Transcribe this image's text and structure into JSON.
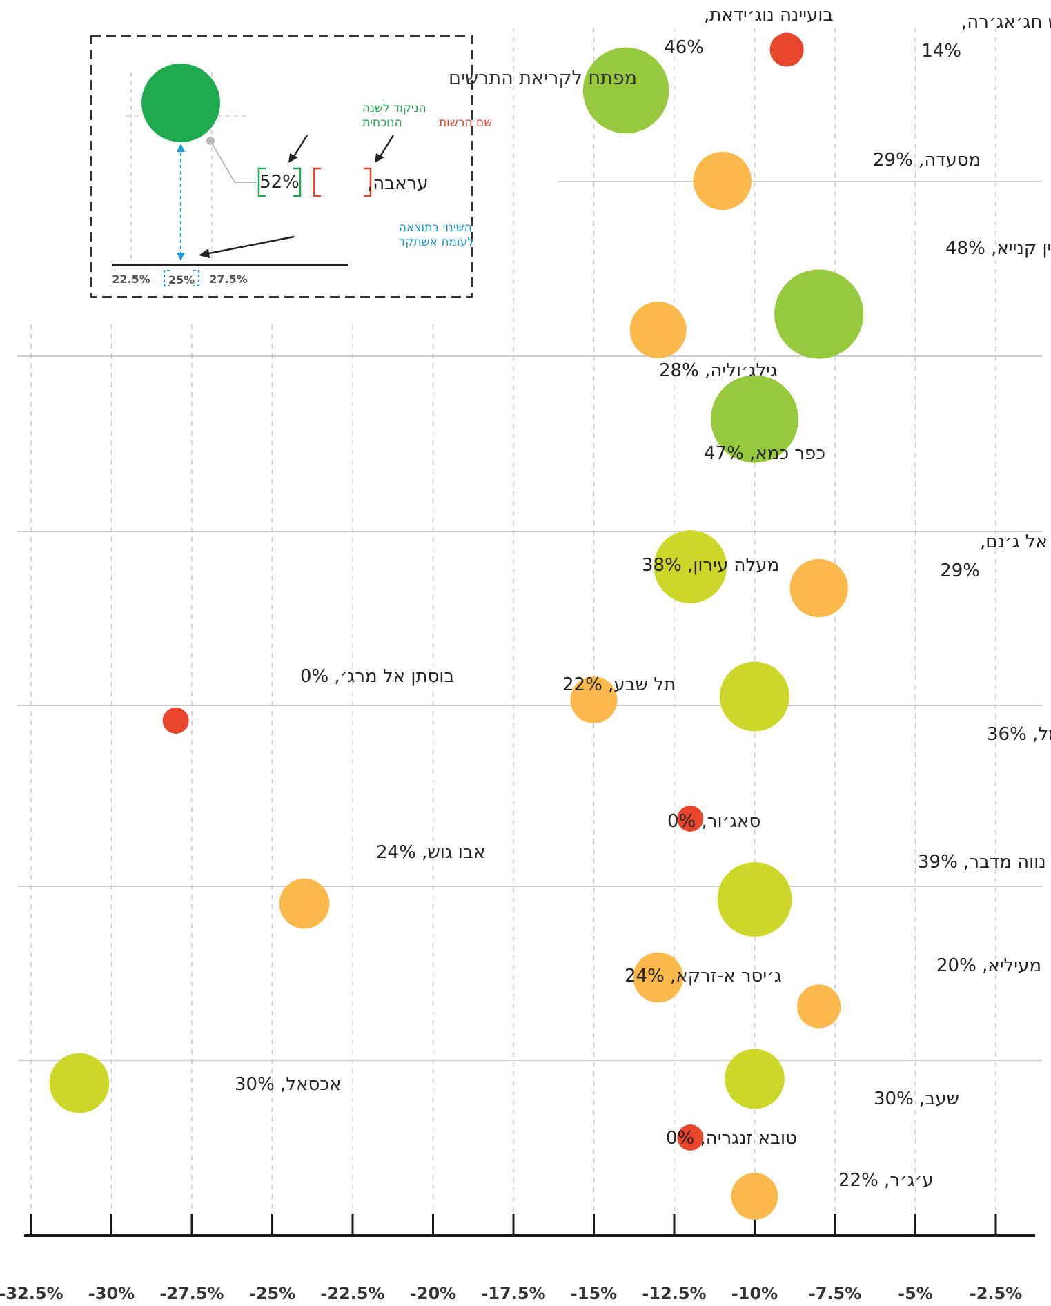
{
  "chart_data": {
    "type": "scatter",
    "title": "",
    "xlabel": "",
    "ylabel": "",
    "xlim": [
      -33.5,
      -1.5
    ],
    "x_ticks": [
      "-32.5%",
      "-30%",
      "-27.5%",
      "-25%",
      "-22.5%",
      "-20%",
      "-17.5%",
      "-15%",
      "-12.5%",
      "-10%",
      "-7.5%",
      "-5%",
      "-2.5%"
    ],
    "x_tick_values": [
      -32.5,
      -30,
      -27.5,
      -25,
      -22.5,
      -20,
      -17.5,
      -15,
      -12.5,
      -10,
      -7.5,
      -5,
      -2.5
    ],
    "gridlines": "dashed vertical",
    "size_encodes": "percentage shown next to each name",
    "colors": {
      "red": "#e8462c",
      "orange": "#fcb94b",
      "yellow_green": "#cdd72a",
      "green": "#96c93e",
      "legend_green": "#1faa4f",
      "blue": "#1a9ad6"
    },
    "points": [
      {
        "name": "כעביה טבאש חג׳אג׳רה,",
        "pct": "14%",
        "x": -9.0,
        "value": 14,
        "color": "red"
      },
      {
        "name": "בועיינה נוג׳ידאת,",
        "pct": "46%",
        "x": -14.0,
        "value": 46,
        "color": "green"
      },
      {
        "name": "מסעדה,",
        "pct": "29%",
        "x": -11.0,
        "value": 29,
        "color": "orange"
      },
      {
        "name": "עין קנייא,",
        "pct": "48%",
        "x": -8.0,
        "value": 48,
        "color": "green"
      },
      {
        "name": "גילג׳וליה,",
        "pct": "28%",
        "x": -13.0,
        "value": 28,
        "color": "orange"
      },
      {
        "name": "כפר כמא,",
        "pct": "47%",
        "x": -10.0,
        "value": 47,
        "color": "green"
      },
      {
        "name": "מעלה עירון,",
        "pct": "38%",
        "x": -12.0,
        "value": 38,
        "color": "yellow_green"
      },
      {
        "name": "שבלי-אום אל ג׳נם,",
        "pct": "29%",
        "x": -8.0,
        "value": 29,
        "color": "orange"
      },
      {
        "name": "תל שבע,",
        "pct": "22%",
        "x": -15.0,
        "value": 22,
        "color": "orange"
      },
      {
        "name": "דאלית אל כרמל,",
        "pct": "36%",
        "x": -10.0,
        "value": 36,
        "color": "yellow_green"
      },
      {
        "name": "בוסתן אל מרג׳,",
        "pct": "0%",
        "x": -28.0,
        "value": 0,
        "color": "red"
      },
      {
        "name": "סאג׳ור,",
        "pct": "0%",
        "x": -12.0,
        "value": 0,
        "color": "red"
      },
      {
        "name": "אבו גוש,",
        "pct": "24%",
        "x": -24.0,
        "value": 24,
        "color": "orange"
      },
      {
        "name": "נווה מדבר,",
        "pct": "39%",
        "x": -10.0,
        "value": 39,
        "color": "yellow_green"
      },
      {
        "name": "ג׳יסר א-זרקא,",
        "pct": "24%",
        "x": -13.0,
        "value": 24,
        "color": "orange"
      },
      {
        "name": "מעיליא,",
        "pct": "20%",
        "x": -8.0,
        "value": 20,
        "color": "orange"
      },
      {
        "name": "אכסאל,",
        "pct": "30%",
        "x": -31.0,
        "value": 30,
        "color": "yellow_green"
      },
      {
        "name": "שעב,",
        "pct": "30%",
        "x": -10.0,
        "value": 30,
        "color": "yellow_green"
      },
      {
        "name": "טובא זנגריה,",
        "pct": "0%",
        "x": -12.0,
        "value": 0,
        "color": "red"
      },
      {
        "name": "ע׳ג׳ר,",
        "pct": "22%",
        "x": -10.0,
        "value": 22,
        "color": "orange"
      }
    ]
  },
  "legend": {
    "title": "מפתח לקריאת התרשים",
    "score_label_line1": "הניקוד לשנה",
    "score_label_line2": "הנוכחית",
    "authority_label": "שם הרשות",
    "example_pct": "52%",
    "example_name": "עראבה,",
    "change_label_line1": "השינוי בתוצאה",
    "change_label_line2": "לעומת אשתקד",
    "ticks": [
      "22.5%",
      "25%",
      "27.5%"
    ]
  }
}
